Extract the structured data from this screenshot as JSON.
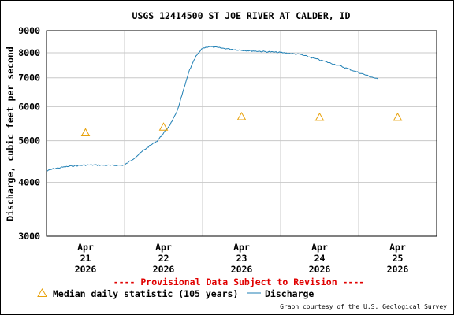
{
  "chart_data": {
    "type": "line",
    "title": "USGS 12414500 ST JOE RIVER AT CALDER, ID",
    "ylabel": "Discharge, cubic feet per second",
    "xlabel": "",
    "yscale": "log",
    "ylim": [
      3000,
      9000
    ],
    "y_ticks": [
      {
        "value": 3000,
        "label": "3000"
      },
      {
        "value": 4000,
        "label": "4000"
      },
      {
        "value": 5000,
        "label": "5000"
      },
      {
        "value": 6000,
        "label": "6000"
      },
      {
        "value": 7000,
        "label": "7000"
      },
      {
        "value": 8000,
        "label": "8000"
      },
      {
        "value": 9000,
        "label": "9000"
      }
    ],
    "xlim": [
      "2026-04-20T12:00",
      "2026-04-25T12:00"
    ],
    "x_ticks": [
      {
        "value": "2026-04-21T00:00",
        "month": "Apr",
        "day": "21",
        "year": "2026"
      },
      {
        "value": "2026-04-22T00:00",
        "month": "Apr",
        "day": "22",
        "year": "2026"
      },
      {
        "value": "2026-04-23T00:00",
        "month": "Apr",
        "day": "23",
        "year": "2026"
      },
      {
        "value": "2026-04-24T00:00",
        "month": "Apr",
        "day": "24",
        "year": "2026"
      },
      {
        "value": "2026-04-25T00:00",
        "month": "Apr",
        "day": "25",
        "year": "2026"
      }
    ],
    "grid": true,
    "series": [
      {
        "name": "Discharge",
        "color": "#1f7fb4",
        "style": "line",
        "points": [
          [
            "2026-04-20T12:00",
            4250
          ],
          [
            "2026-04-20T14:00",
            4300
          ],
          [
            "2026-04-20T17:00",
            4340
          ],
          [
            "2026-04-20T20:00",
            4370
          ],
          [
            "2026-04-21T00:00",
            4390
          ],
          [
            "2026-04-21T04:00",
            4390
          ],
          [
            "2026-04-21T08:00",
            4380
          ],
          [
            "2026-04-21T10:00",
            4385
          ],
          [
            "2026-04-21T12:00",
            4390
          ],
          [
            "2026-04-21T14:00",
            4500
          ],
          [
            "2026-04-21T16:00",
            4620
          ],
          [
            "2026-04-21T18:00",
            4760
          ],
          [
            "2026-04-21T20:00",
            4880
          ],
          [
            "2026-04-21T22:00",
            4990
          ],
          [
            "2026-04-22T00:00",
            5200
          ],
          [
            "2026-04-22T02:00",
            5450
          ],
          [
            "2026-04-22T04:00",
            5800
          ],
          [
            "2026-04-22T06:00",
            6500
          ],
          [
            "2026-04-22T08:00",
            7300
          ],
          [
            "2026-04-22T10:00",
            7850
          ],
          [
            "2026-04-22T12:00",
            8200
          ],
          [
            "2026-04-22T14:00",
            8270
          ],
          [
            "2026-04-22T18:00",
            8200
          ],
          [
            "2026-04-23T00:00",
            8110
          ],
          [
            "2026-04-23T06:00",
            8060
          ],
          [
            "2026-04-23T12:00",
            8010
          ],
          [
            "2026-04-23T18:00",
            7930
          ],
          [
            "2026-04-24T00:00",
            7700
          ],
          [
            "2026-04-24T06:00",
            7470
          ],
          [
            "2026-04-24T12:00",
            7200
          ],
          [
            "2026-04-24T15:00",
            7070
          ],
          [
            "2026-04-24T18:00",
            6950
          ]
        ]
      },
      {
        "name": "Median daily statistic (105 years)",
        "color": "#e8a20c",
        "style": "triangle",
        "points": [
          [
            "2026-04-21T00:00",
            5230
          ],
          [
            "2026-04-22T00:00",
            5390
          ],
          [
            "2026-04-23T00:00",
            5700
          ],
          [
            "2026-04-24T00:00",
            5680
          ],
          [
            "2026-04-25T00:00",
            5680
          ]
        ]
      }
    ],
    "notice": "---- Provisional Data Subject to Revision ----",
    "legend_placement": "bottom-left",
    "credit": "Graph courtesy of the U.S. Geological Survey"
  }
}
